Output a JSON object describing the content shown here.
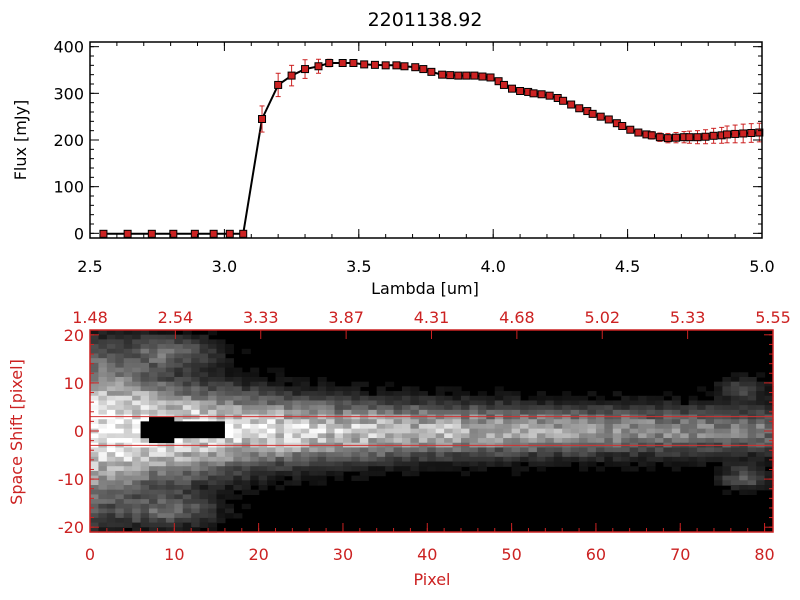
{
  "figure": {
    "title": "2201138.92",
    "colors": {
      "axis": "#000000",
      "series": "#000000",
      "marker": "#cc2222",
      "error": "#cc2222",
      "panel2": "#cc2222",
      "aperture": "#d43030"
    }
  },
  "chart_data": [
    {
      "type": "line",
      "title": "2201138.92",
      "xlabel": "Lambda [um]",
      "ylabel": "Flux [mJy]",
      "xlim": [
        2.5,
        5.0
      ],
      "ylim": [
        -10,
        410
      ],
      "x_ticks": [
        "2.5",
        "3.0",
        "3.5",
        "4.0",
        "4.5",
        "5.0"
      ],
      "y_ticks": [
        "0",
        "100",
        "200",
        "300",
        "400"
      ],
      "grid": false,
      "series": [
        {
          "x": [
            2.55,
            2.64,
            2.73,
            2.81,
            2.89,
            2.96,
            3.02,
            3.07,
            3.14,
            3.2,
            3.25,
            3.3,
            3.35,
            3.39,
            3.44,
            3.48,
            3.52,
            3.56,
            3.6,
            3.64,
            3.67,
            3.71,
            3.74,
            3.77,
            3.81,
            3.84,
            3.87,
            3.9,
            3.93,
            3.96,
            3.99,
            4.02,
            4.04,
            4.07,
            4.1,
            4.13,
            4.15,
            4.18,
            4.21,
            4.24,
            4.26,
            4.29,
            4.32,
            4.35,
            4.37,
            4.4,
            4.43,
            4.46,
            4.48,
            4.51,
            4.54,
            4.57,
            4.59,
            4.62,
            4.65,
            4.68,
            4.71,
            4.73,
            4.76,
            4.79,
            4.82,
            4.85,
            4.87,
            4.9,
            4.93,
            4.96,
            4.99
          ],
          "y": [
            -1,
            -1,
            -1,
            -1,
            -1,
            -1,
            -1,
            -1,
            245,
            318,
            338,
            352,
            358,
            365,
            365,
            365,
            362,
            361,
            360,
            360,
            358,
            356,
            352,
            346,
            340,
            339,
            338,
            338,
            338,
            336,
            334,
            326,
            318,
            310,
            305,
            303,
            300,
            298,
            295,
            290,
            284,
            276,
            268,
            262,
            256,
            250,
            244,
            236,
            230,
            222,
            216,
            212,
            210,
            206,
            204,
            205,
            206,
            206,
            206,
            207,
            209,
            210,
            212,
            213,
            214,
            215,
            216
          ],
          "err": [
            2,
            2,
            2,
            2,
            2,
            2,
            2,
            2,
            28,
            25,
            22,
            20,
            15,
            8,
            6,
            5,
            5,
            5,
            5,
            5,
            5,
            5,
            5,
            5,
            5,
            5,
            5,
            5,
            5,
            5,
            5,
            5,
            5,
            5,
            5,
            5,
            5,
            5,
            5,
            5,
            5,
            5,
            5,
            5,
            5,
            5,
            5,
            5,
            5,
            5,
            5,
            6,
            8,
            9,
            10,
            11,
            12,
            13,
            14,
            15,
            16,
            17,
            18,
            19,
            20,
            20,
            20
          ]
        }
      ]
    },
    {
      "type": "heatmap",
      "xlabel": "Pixel",
      "ylabel": "Space Shift [pixel]",
      "xlim": [
        0,
        81
      ],
      "ylim": [
        -21,
        21
      ],
      "x_ticks": [
        "0",
        "10",
        "20",
        "30",
        "40",
        "50",
        "60",
        "70",
        "80"
      ],
      "y_ticks": [
        "20",
        "10",
        "0",
        "-10",
        "-20"
      ],
      "top_tick_labels": [
        "1.48",
        "2.54",
        "3.33",
        "3.87",
        "4.31",
        "4.68",
        "5.02",
        "5.33",
        "5.55"
      ],
      "aperture_lines": [
        3,
        -3
      ],
      "colormap": "grayscale"
    }
  ]
}
